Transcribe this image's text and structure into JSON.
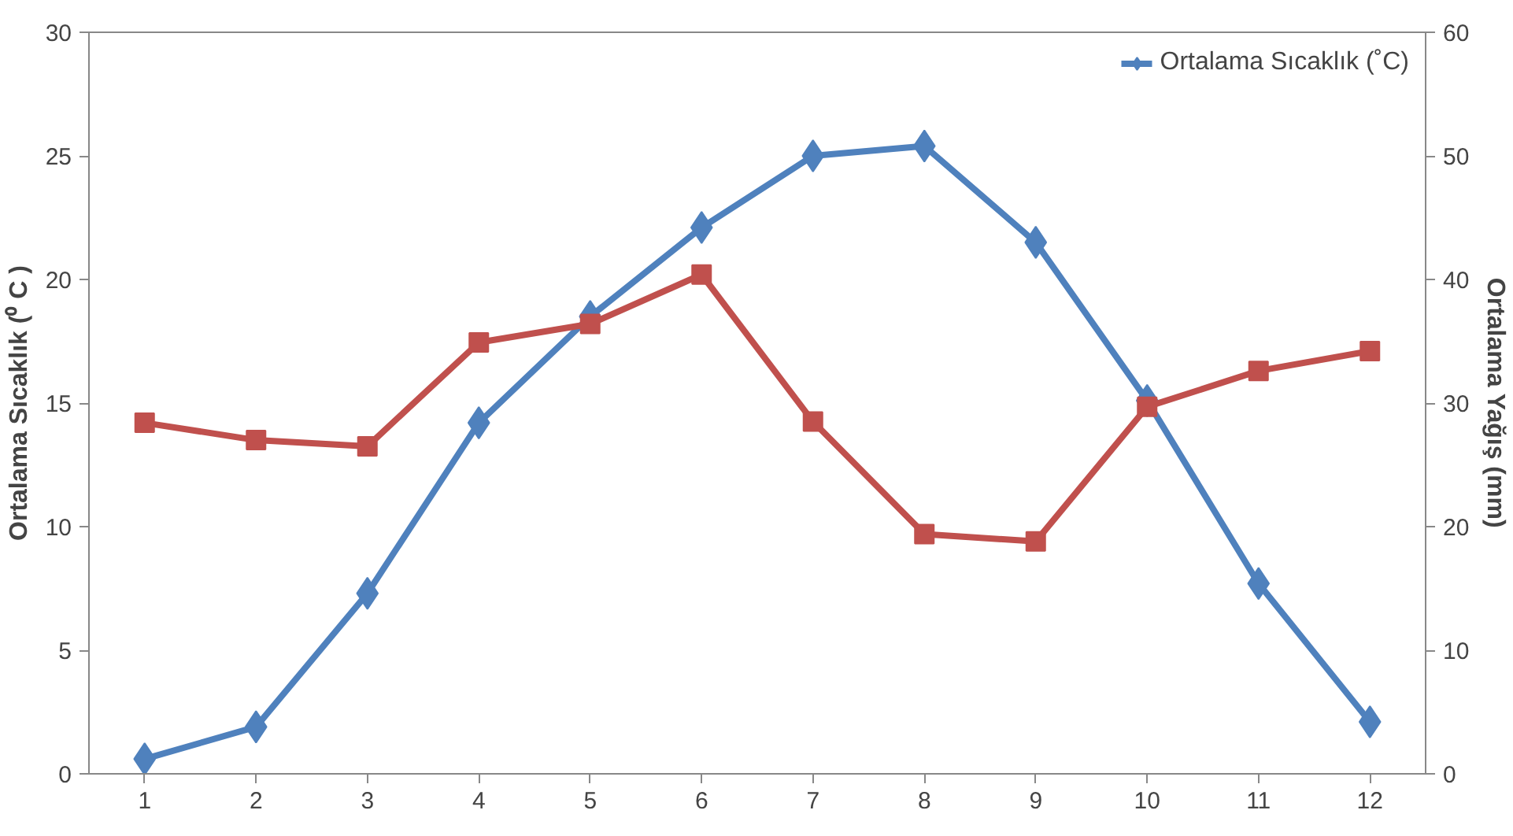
{
  "chart_data": {
    "type": "line",
    "x": [
      1,
      2,
      3,
      4,
      5,
      6,
      7,
      8,
      9,
      10,
      11,
      12
    ],
    "xlim": [
      0.5,
      12.5
    ],
    "xticks": [
      1,
      2,
      3,
      4,
      5,
      6,
      7,
      8,
      9,
      10,
      11,
      12
    ],
    "ylabel": "Ortalama Sıcaklık (⁰ C )",
    "y2label": "Ortalama Yağış (mm)",
    "ylim": [
      0,
      30
    ],
    "yticks": [
      0,
      5,
      10,
      15,
      20,
      25,
      30
    ],
    "y2lim": [
      0,
      60
    ],
    "y2ticks": [
      0,
      10,
      20,
      30,
      40,
      50,
      60
    ],
    "grid": false,
    "legend": "top right",
    "series": [
      {
        "name": "Ortalama Sıcaklık (˚C)",
        "color": "#4f81bd",
        "marker": "diamond",
        "values": [
          0.6,
          1.9,
          7.3,
          14.2,
          18.5,
          22.1,
          25.0,
          25.4,
          21.5,
          15.1,
          7.7,
          2.1
        ]
      },
      {
        "color": "#c0504d",
        "marker": "square",
        "axis": "y2",
        "values": [
          28.4,
          27.0,
          26.5,
          34.9,
          36.4,
          40.4,
          28.5,
          19.4,
          18.8,
          29.7,
          32.6,
          34.2
        ]
      }
    ]
  }
}
